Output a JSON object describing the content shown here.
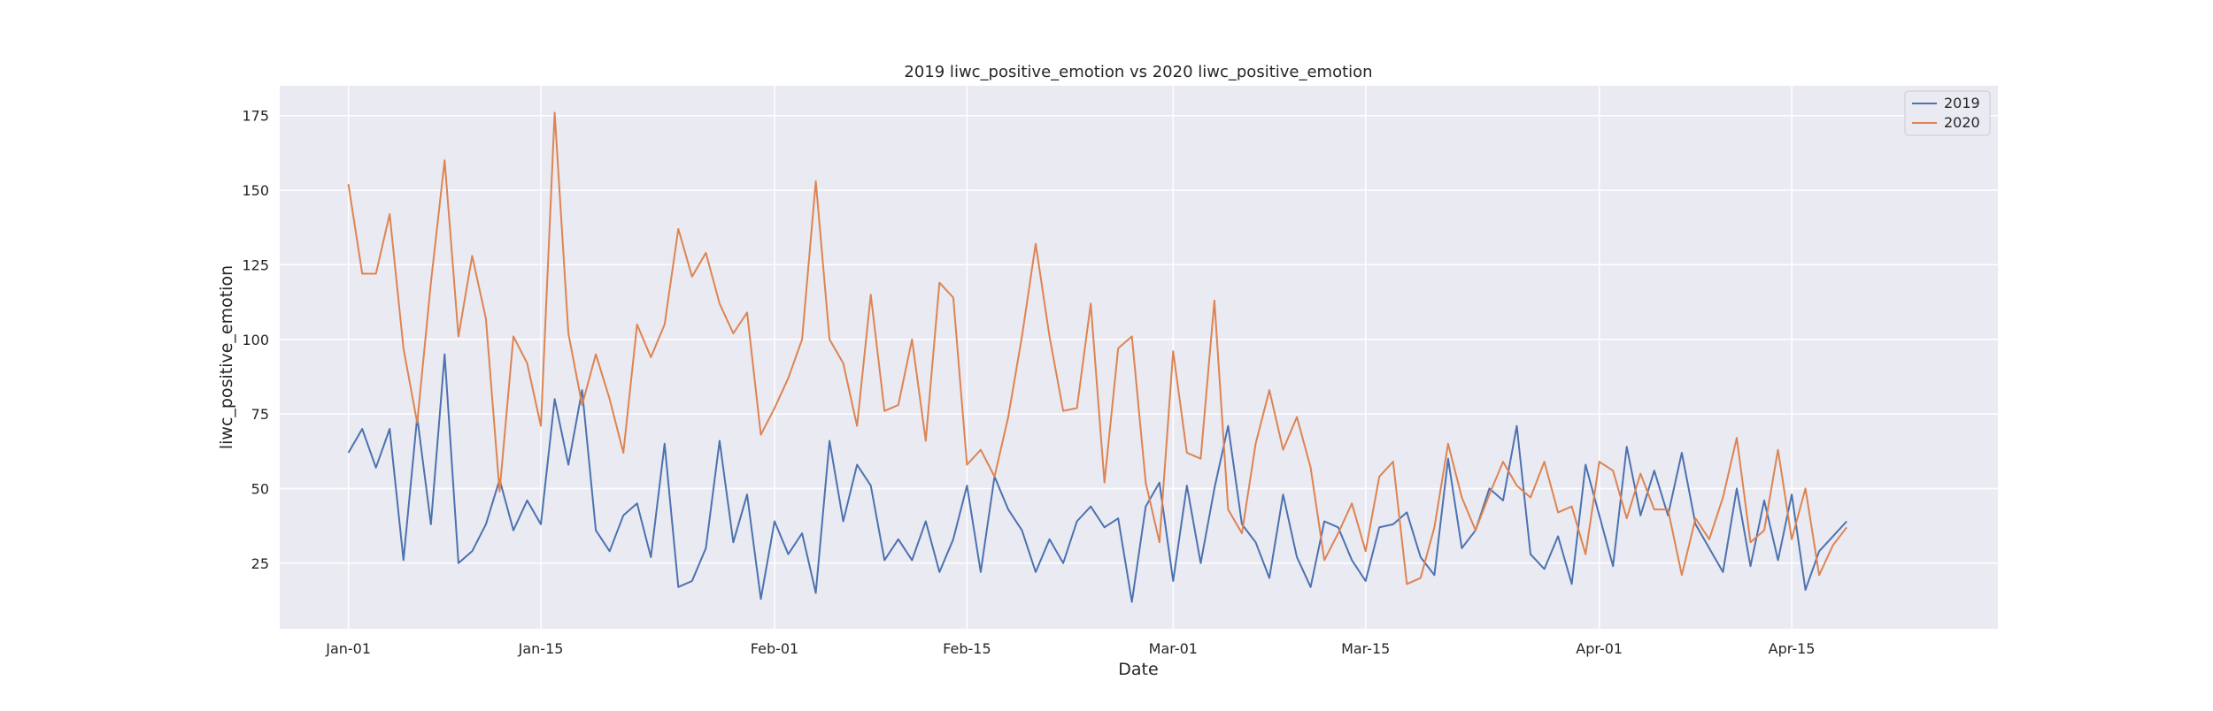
{
  "chart_data": {
    "type": "line",
    "title": "2019 liwc_positive_emotion vs 2020 liwc_positive_emotion",
    "xlabel": "Date",
    "ylabel": "liwc_positive_emotion",
    "x_start": "Jan-01",
    "x_end": "Apr-20",
    "xlim": [
      "Dec-27",
      "Apr-30"
    ],
    "ylim": [
      3,
      185
    ],
    "x_ticks": [
      "Jan-01",
      "Jan-15",
      "Feb-01",
      "Feb-15",
      "Mar-01",
      "Mar-15",
      "Apr-01",
      "Apr-15"
    ],
    "y_ticks": [
      25,
      50,
      75,
      100,
      125,
      150,
      175
    ],
    "grid": true,
    "legend_position": "top-right",
    "series": [
      {
        "name": "2019",
        "color": "#4c72b0",
        "values": [
          62,
          70,
          57,
          70,
          26,
          74,
          38,
          95,
          25,
          29,
          38,
          53,
          36,
          46,
          38,
          80,
          58,
          83,
          36,
          29,
          41,
          45,
          27,
          65,
          17,
          19,
          30,
          66,
          32,
          48,
          13,
          39,
          28,
          35,
          15,
          66,
          39,
          58,
          51,
          26,
          33,
          26,
          39,
          22,
          33,
          51,
          22,
          54,
          43,
          36,
          22,
          33,
          25,
          39,
          44,
          37,
          40,
          12,
          44,
          52,
          19,
          51,
          25,
          50,
          71,
          38,
          32,
          20,
          48,
          27,
          17,
          39,
          37,
          26,
          19,
          37,
          38,
          42,
          27,
          21,
          60,
          30,
          36,
          50,
          46,
          71,
          28,
          23,
          34,
          18,
          58,
          41,
          24,
          64,
          41,
          56,
          41,
          62,
          38,
          30,
          22,
          50,
          24,
          46,
          26,
          48,
          16,
          29,
          34,
          39
        ]
      },
      {
        "name": "2020",
        "color": "#dd8452",
        "values": [
          152,
          122,
          122,
          142,
          97,
          72,
          119,
          160,
          101,
          128,
          107,
          49,
          101,
          92,
          71,
          176,
          102,
          78,
          95,
          80,
          62,
          105,
          94,
          105,
          137,
          121,
          129,
          112,
          102,
          109,
          68,
          77,
          87,
          100,
          153,
          100,
          92,
          71,
          115,
          76,
          78,
          100,
          66,
          119,
          114,
          58,
          63,
          54,
          74,
          101,
          132,
          101,
          76,
          77,
          112,
          52,
          97,
          101,
          52,
          32,
          96,
          62,
          60,
          113,
          43,
          35,
          65,
          83,
          63,
          74,
          57,
          26,
          35,
          45,
          29,
          54,
          59,
          18,
          20,
          37,
          65,
          47,
          36,
          48,
          59,
          51,
          47,
          59,
          42,
          44,
          28,
          59,
          56,
          40,
          55,
          43,
          43,
          21,
          40,
          33,
          47,
          67,
          32,
          36,
          63,
          33,
          50,
          21,
          31,
          37
        ]
      }
    ]
  }
}
